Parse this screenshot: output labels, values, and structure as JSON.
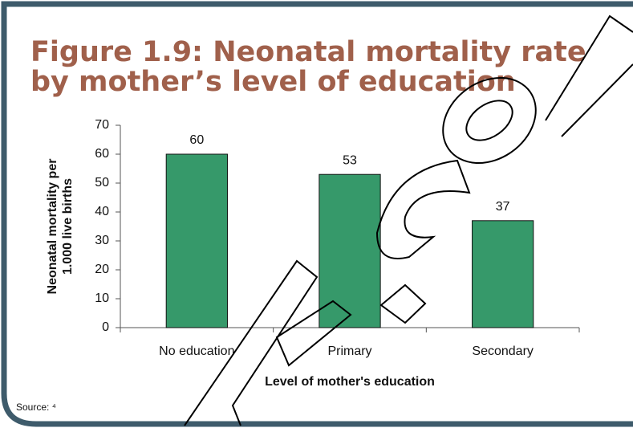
{
  "chart_data": {
    "type": "bar",
    "title": [
      "Figure 1.9: Neonatal mortality rate",
      "by mother’s level of education"
    ],
    "ylabel": [
      "Neonatal mortality per",
      "1.000 live births"
    ],
    "xlabel": "Level of mother's education",
    "categories": [
      "No education",
      "Primary",
      "Secondary"
    ],
    "values": [
      60,
      53,
      37
    ],
    "color": "#36996a",
    "ylim": [
      0,
      70
    ],
    "yticks": [
      0,
      10,
      20,
      30,
      40,
      50,
      60,
      70
    ],
    "grid": false,
    "source": "Source: ⁴"
  }
}
